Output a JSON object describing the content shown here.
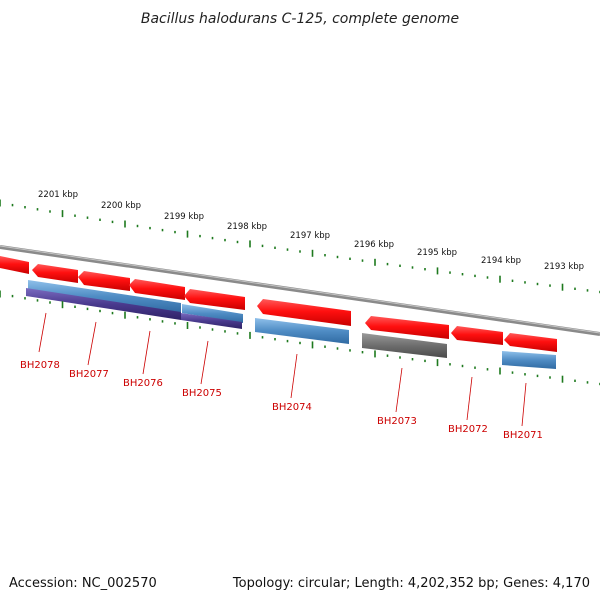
{
  "title": "Bacillus halodurans C-125, complete genome",
  "footer": {
    "accession": "Accession: NC_002570",
    "topology": "Topology: circular; Length: 4,202,352 bp; Genes: 4,170"
  },
  "colors": {
    "cds_forward": "#e8000b",
    "cds_blue": "#4f8cc4",
    "cds_purple": "#4a3a8e",
    "cds_gray": "#6e6e6e",
    "backbone": "#8a8a8a",
    "ticks": "#1e7a1e",
    "gene_label": "#cc0000"
  },
  "kbp_ticks": [
    "2201 kbp",
    "2200 kbp",
    "2199 kbp",
    "2198 kbp",
    "2197 kbp",
    "2196 kbp",
    "2195 kbp",
    "2194 kbp",
    "2193 kbp"
  ],
  "genes": [
    "BH2078",
    "BH2077",
    "BH2076",
    "BH2075",
    "BH2074",
    "BH2073",
    "BH2072",
    "BH2071"
  ]
}
